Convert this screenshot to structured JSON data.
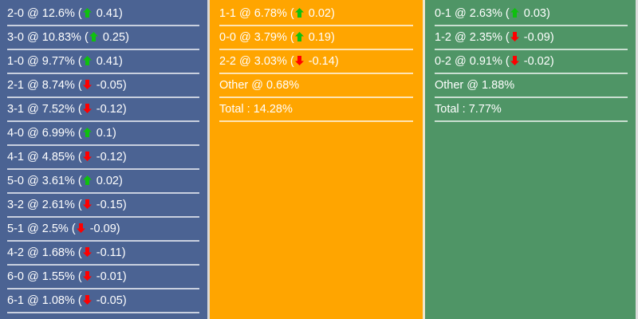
{
  "colors": {
    "home": "#4b6393",
    "draw": "#ffa500",
    "away": "#4f9566",
    "up": "#0fc00f",
    "down": "#ff0000"
  },
  "home_column": [
    {
      "score": "2-0",
      "pct": "12.6%",
      "dir": "up",
      "change": "0.41"
    },
    {
      "score": "3-0",
      "pct": "10.83%",
      "dir": "up",
      "change": "0.25"
    },
    {
      "score": "1-0",
      "pct": "9.77%",
      "dir": "up",
      "change": "0.41"
    },
    {
      "score": "2-1",
      "pct": "8.74%",
      "dir": "down",
      "change": "-0.05"
    },
    {
      "score": "3-1",
      "pct": "7.52%",
      "dir": "down",
      "change": "-0.12"
    },
    {
      "score": "4-0",
      "pct": "6.99%",
      "dir": "up",
      "change": "0.1"
    },
    {
      "score": "4-1",
      "pct": "4.85%",
      "dir": "down",
      "change": "-0.12"
    },
    {
      "score": "5-0",
      "pct": "3.61%",
      "dir": "up",
      "change": "0.02"
    },
    {
      "score": "3-2",
      "pct": "2.61%",
      "dir": "down",
      "change": "-0.15"
    },
    {
      "score": "5-1",
      "pct": "2.5%",
      "dir": "down",
      "change": "-0.09"
    },
    {
      "score": "4-2",
      "pct": "1.68%",
      "dir": "down",
      "change": "-0.11"
    },
    {
      "score": "6-0",
      "pct": "1.55%",
      "dir": "down",
      "change": "-0.01"
    },
    {
      "score": "6-1",
      "pct": "1.08%",
      "dir": "down",
      "change": "-0.05"
    }
  ],
  "draw_column": {
    "rows": [
      {
        "score": "1-1",
        "pct": "6.78%",
        "dir": "up",
        "change": "0.02"
      },
      {
        "score": "0-0",
        "pct": "3.79%",
        "dir": "up",
        "change": "0.19"
      },
      {
        "score": "2-2",
        "pct": "3.03%",
        "dir": "down",
        "change": "-0.14"
      }
    ],
    "other": "Other @ 0.68%",
    "total": "Total : 14.28%"
  },
  "away_column": {
    "rows": [
      {
        "score": "0-1",
        "pct": "2.63%",
        "dir": "up",
        "change": "0.03"
      },
      {
        "score": "1-2",
        "pct": "2.35%",
        "dir": "down",
        "change": "-0.09"
      },
      {
        "score": "0-2",
        "pct": "0.91%",
        "dir": "down",
        "change": "-0.02"
      }
    ],
    "other": "Other @ 1.88%",
    "total": "Total : 7.77%"
  }
}
